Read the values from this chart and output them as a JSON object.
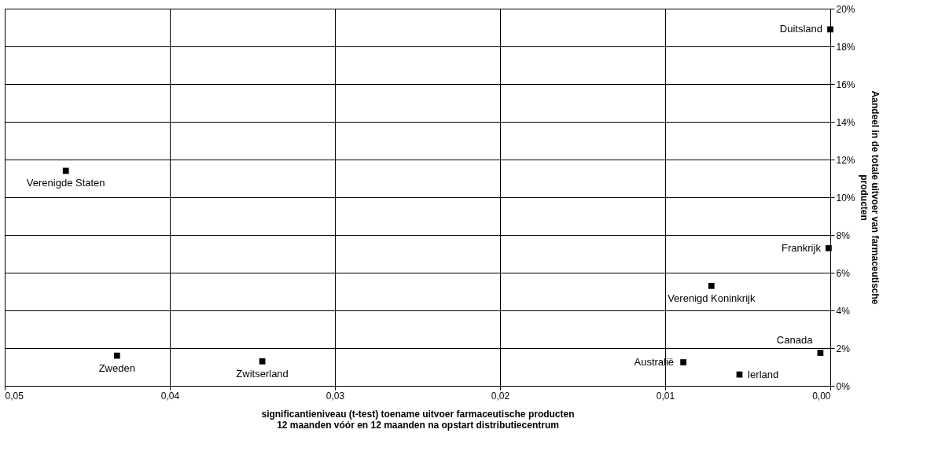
{
  "chart_data": {
    "type": "scatter",
    "xlabel": "significantieniveau (t-test) toename uitvoer farmaceutische producten\n12 maanden vóór en 12 maanden na opstart distributiecentrum",
    "ylabel": "Aandeel in de totale uitvoer van farmaceutische\nproducten",
    "x": [
      0.0,
      0.0463,
      0.0001,
      0.0072,
      0.0006,
      0.0432,
      0.0344,
      0.0089,
      0.0055
    ],
    "series": [
      {
        "color": "#000000",
        "values": [
          18.9,
          11.4,
          7.3,
          5.3,
          1.75,
          1.6,
          1.3,
          1.25,
          0.6
        ]
      }
    ],
    "annotations": [
      {
        "text": "Duitsland",
        "x": 0.0,
        "y": 18.9
      },
      {
        "text": "Verenigde Staten",
        "x": 0.0463,
        "y": 11.4
      },
      {
        "text": "Frankrijk",
        "x": 0.0001,
        "y": 7.3
      },
      {
        "text": "Verenigd Koninkrijk",
        "x": 0.0072,
        "y": 5.3
      },
      {
        "text": "Canada",
        "x": 0.0006,
        "y": 1.75
      },
      {
        "text": "Zweden",
        "x": 0.0432,
        "y": 1.6
      },
      {
        "text": "Zwitserland",
        "x": 0.0344,
        "y": 1.3
      },
      {
        "text": "Australië",
        "x": 0.0089,
        "y": 1.25
      },
      {
        "text": "Ierland",
        "x": 0.0055,
        "y": 0.6
      }
    ],
    "xlim": [
      0.05,
      0.0
    ],
    "xticks": [
      {
        "value": 0.05,
        "label": "0,05"
      },
      {
        "value": 0.04,
        "label": "0,04"
      },
      {
        "value": 0.03,
        "label": "0,03"
      },
      {
        "value": 0.02,
        "label": "0,02"
      },
      {
        "value": 0.01,
        "label": "0,01"
      },
      {
        "value": 0.0,
        "label": "0,00"
      }
    ],
    "ylim": [
      0,
      20
    ],
    "yticks": [
      {
        "value": 0,
        "label": "0%"
      },
      {
        "value": 2,
        "label": "2%"
      },
      {
        "value": 4,
        "label": "4%"
      },
      {
        "value": 6,
        "label": "6%"
      },
      {
        "value": 8,
        "label": "8%"
      },
      {
        "value": 10,
        "label": "10%"
      },
      {
        "value": 12,
        "label": "12%"
      },
      {
        "value": 14,
        "label": "14%"
      },
      {
        "value": 16,
        "label": "16%"
      },
      {
        "value": 18,
        "label": "18%"
      },
      {
        "value": 20,
        "label": "20%"
      }
    ],
    "grid": true,
    "marker": "square"
  }
}
